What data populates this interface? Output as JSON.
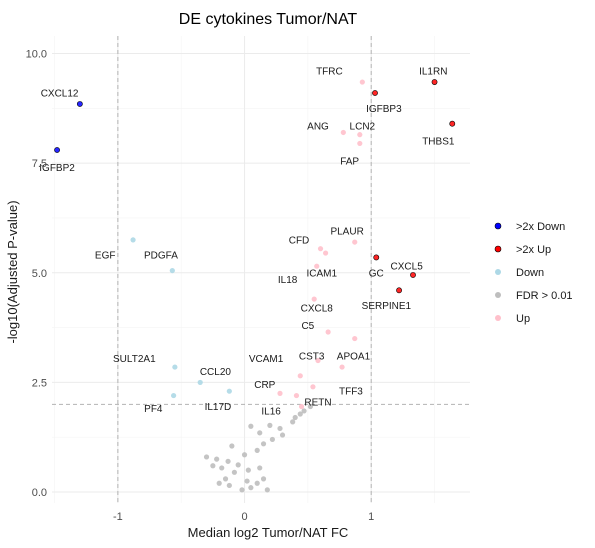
{
  "chart_data": {
    "type": "scatter",
    "title": "DE cytokines Tumor/NAT",
    "xlabel": "Median log2 Tumor/NAT FC",
    "ylabel": "-log10(Adjusted P-value)",
    "xlim": [
      -1.52,
      1.78
    ],
    "ylim": [
      -0.25,
      10.4
    ],
    "xticks": [
      -1,
      0,
      1
    ],
    "yticks": [
      0.0,
      2.5,
      5.0,
      7.5,
      10.0
    ],
    "ytick_labels": [
      "0.0",
      "2.5",
      "5.0",
      "7.5",
      "10.0"
    ],
    "thresholds": {
      "x": [
        -1,
        1
      ],
      "y": 2
    },
    "grid": true,
    "legend_position": "right",
    "series": [
      {
        "name": ">2x Down",
        "color": "#0000ff",
        "points": [
          {
            "label": "CXCL12",
            "x": -1.3,
            "y": 8.85
          },
          {
            "label": "IGFBP2",
            "x": -1.48,
            "y": 7.8
          }
        ]
      },
      {
        "name": ">2x Up",
        "color": "#ff0000",
        "points": [
          {
            "label": "IL1RN",
            "x": 1.5,
            "y": 9.35
          },
          {
            "label": "IGFBP3",
            "x": 1.03,
            "y": 9.1
          },
          {
            "label": "THBS1",
            "x": 1.64,
            "y": 8.4
          },
          {
            "label": "GC",
            "x": 1.04,
            "y": 5.35
          },
          {
            "label": "CXCL5",
            "x": 1.33,
            "y": 4.95
          },
          {
            "label": "SERPINE1",
            "x": 1.22,
            "y": 4.6
          }
        ]
      },
      {
        "name": "Down",
        "color": "#add8e6",
        "points": [
          {
            "label": "EGF",
            "x": -0.88,
            "y": 5.75
          },
          {
            "label": "PDGFA",
            "x": -0.57,
            "y": 5.05
          },
          {
            "label": "SULT2A1",
            "x": -0.55,
            "y": 2.85
          },
          {
            "label": "CCL20",
            "x": -0.35,
            "y": 2.5
          },
          {
            "label": "PF4",
            "x": -0.56,
            "y": 2.2
          },
          {
            "label": "IL17D",
            "x": -0.12,
            "y": 2.3
          }
        ]
      },
      {
        "name": "FDR > 0.01",
        "color": "#bebebe",
        "points": [
          {
            "x": 0.52,
            "y": 1.95
          },
          {
            "x": 0.47,
            "y": 1.85
          },
          {
            "x": 0.44,
            "y": 1.78
          },
          {
            "x": 0.38,
            "y": 1.6
          },
          {
            "x": 0.4,
            "y": 1.7
          },
          {
            "x": 0.28,
            "y": 1.45
          },
          {
            "x": 0.3,
            "y": 1.3
          },
          {
            "x": 0.2,
            "y": 1.52
          },
          {
            "x": 0.22,
            "y": 1.2
          },
          {
            "x": 0.15,
            "y": 1.1
          },
          {
            "x": 0.12,
            "y": 1.35
          },
          {
            "x": 0.05,
            "y": 1.5
          },
          {
            "x": 0.1,
            "y": 0.95
          },
          {
            "x": -0.1,
            "y": 1.05
          },
          {
            "x": 0.0,
            "y": 0.85
          },
          {
            "x": -0.13,
            "y": 0.7
          },
          {
            "x": -0.22,
            "y": 0.75
          },
          {
            "x": -0.18,
            "y": 0.55
          },
          {
            "x": -0.08,
            "y": 0.45
          },
          {
            "x": -0.15,
            "y": 0.3
          },
          {
            "x": -0.12,
            "y": 0.15
          },
          {
            "x": -0.25,
            "y": 0.6
          },
          {
            "x": -0.05,
            "y": 0.62
          },
          {
            "x": 0.03,
            "y": 0.5
          },
          {
            "x": 0.12,
            "y": 0.55
          },
          {
            "x": 0.15,
            "y": 0.3
          },
          {
            "x": 0.05,
            "y": 0.1
          },
          {
            "x": -0.02,
            "y": 0.05
          },
          {
            "x": 0.1,
            "y": 0.2
          },
          {
            "x": -0.2,
            "y": 0.2
          },
          {
            "x": 0.18,
            "y": 0.05
          },
          {
            "x": -0.3,
            "y": 0.8
          },
          {
            "x": 0.02,
            "y": 0.25
          }
        ]
      },
      {
        "name": "Up",
        "color": "#ffc0cb",
        "points": [
          {
            "label": "TFRC",
            "x": 0.93,
            "y": 9.35
          },
          {
            "label": "ANG",
            "x": 0.78,
            "y": 8.2
          },
          {
            "label": "LCN2",
            "x": 0.91,
            "y": 8.15
          },
          {
            "label": "FAP",
            "x": 0.91,
            "y": 7.95
          },
          {
            "label": "CFD",
            "x": 0.6,
            "y": 5.55
          },
          {
            "label": "PLAUR",
            "x": 0.87,
            "y": 5.7
          },
          {
            "label": "CFD",
            "x": 0.64,
            "y": 5.45
          },
          {
            "label": "IL18",
            "x": 0.57,
            "y": 5.15
          },
          {
            "label": "ICAM1",
            "x": 0.55,
            "y": 4.4
          },
          {
            "label": "CXCL8",
            "x": 0.66,
            "y": 3.65
          },
          {
            "label": "C5",
            "x": 0.58,
            "y": 3.0
          },
          {
            "label": "CST3",
            "x": 0.87,
            "y": 3.5
          },
          {
            "label": "APOA1",
            "x": 0.77,
            "y": 2.85
          },
          {
            "label": "VCAM1",
            "x": 0.44,
            "y": 2.65
          },
          {
            "label": "TFF3",
            "x": 0.54,
            "y": 2.4
          },
          {
            "label": "CRP",
            "x": 0.28,
            "y": 2.25
          },
          {
            "label": "RETN",
            "x": 0.41,
            "y": 2.2
          },
          {
            "label": "IL16",
            "x": 0.45,
            "y": 1.95
          }
        ]
      }
    ],
    "annotations": [
      {
        "text": "CXCL12",
        "x": -1.46,
        "y": 9.1
      },
      {
        "text": "IGFBP2",
        "x": -1.48,
        "y": 7.4
      },
      {
        "text": "TFRC",
        "x": 0.67,
        "y": 9.6
      },
      {
        "text": "IL1RN",
        "x": 1.49,
        "y": 9.6
      },
      {
        "text": "IGFBP3",
        "x": 1.1,
        "y": 8.75
      },
      {
        "text": "ANG",
        "x": 0.58,
        "y": 8.35
      },
      {
        "text": "LCN2",
        "x": 0.93,
        "y": 8.35
      },
      {
        "text": "THBS1",
        "x": 1.53,
        "y": 8.0
      },
      {
        "text": "FAP",
        "x": 0.83,
        "y": 7.55
      },
      {
        "text": "EGF",
        "x": -1.1,
        "y": 5.4
      },
      {
        "text": "PDGFA",
        "x": -0.66,
        "y": 5.4
      },
      {
        "text": "PLAUR",
        "x": 0.81,
        "y": 5.95
      },
      {
        "text": "CFD",
        "x": 0.43,
        "y": 5.75
      },
      {
        "text": "ICAM1",
        "x": 0.61,
        "y": 5.0
      },
      {
        "text": "GC",
        "x": 1.04,
        "y": 5.0
      },
      {
        "text": "CXCL5",
        "x": 1.28,
        "y": 5.15
      },
      {
        "text": "IL18",
        "x": 0.34,
        "y": 4.85
      },
      {
        "text": "CXCL8",
        "x": 0.57,
        "y": 4.2
      },
      {
        "text": "SERPINE1",
        "x": 1.12,
        "y": 4.25
      },
      {
        "text": "C5",
        "x": 0.5,
        "y": 3.8
      },
      {
        "text": "SULT2A1",
        "x": -0.87,
        "y": 3.05
      },
      {
        "text": "CST3",
        "x": 0.53,
        "y": 3.1
      },
      {
        "text": "APOA1",
        "x": 0.86,
        "y": 3.1
      },
      {
        "text": "VCAM1",
        "x": 0.17,
        "y": 3.05
      },
      {
        "text": "CCL20",
        "x": -0.23,
        "y": 2.75
      },
      {
        "text": "TFF3",
        "x": 0.84,
        "y": 2.3
      },
      {
        "text": "CRP",
        "x": 0.16,
        "y": 2.45
      },
      {
        "text": "RETN",
        "x": 0.58,
        "y": 2.05
      },
      {
        "text": "PF4",
        "x": -0.72,
        "y": 1.9
      },
      {
        "text": "IL17D",
        "x": -0.21,
        "y": 1.95
      },
      {
        "text": "IL16",
        "x": 0.21,
        "y": 1.85
      }
    ]
  }
}
